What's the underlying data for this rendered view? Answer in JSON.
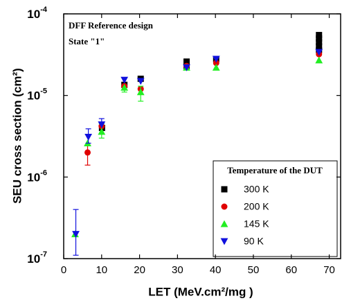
{
  "chart_data": {
    "type": "scatter",
    "xlabel": "LET (MeV.cm²/mg )",
    "ylabel": "SEU cross section (cm²)",
    "annotations": [
      "DFF Reference design",
      "State \"1\""
    ],
    "legend_title": "Temperature of the DUT",
    "legend": "lower right",
    "yscale": "log",
    "xlim": [
      0,
      73
    ],
    "xticks": [
      0,
      10,
      20,
      30,
      40,
      50,
      60,
      70
    ],
    "ylim": [
      1e-07,
      0.0001
    ],
    "yticks": [
      {
        "value": 1e-07,
        "label": "10",
        "exponent": "-7"
      },
      {
        "value": 1e-06,
        "label": "10",
        "exponent": "-6"
      },
      {
        "value": 1e-05,
        "label": "10",
        "exponent": "-5"
      },
      {
        "value": 0.0001,
        "label": "10",
        "exponent": "-4"
      }
    ],
    "series": [
      {
        "name": "300 K",
        "color": "#000000",
        "marker": "square",
        "x": [
          10.1,
          16,
          20.3,
          32.4,
          32.4,
          40.2,
          67.3,
          67.3,
          67.3,
          67.3,
          67.3
        ],
        "values": [
          4e-06,
          1.35e-05,
          1.6e-05,
          2.6e-05,
          2.3e-05,
          2.8e-05,
          5.5e-05,
          5e-05,
          4.5e-05,
          4e-05,
          3.6e-05
        ]
      },
      {
        "name": "200 K",
        "color": "#e00000",
        "marker": "circle",
        "x": [
          6.3,
          10,
          16,
          20.3,
          32.4,
          40.2,
          67.3
        ],
        "values": [
          2e-06,
          4.2e-06,
          1.3e-05,
          1.2e-05,
          2.3e-05,
          2.5e-05,
          3.2e-05
        ],
        "ylow": [
          1.4e-06,
          null,
          null,
          null,
          null,
          null,
          null
        ],
        "yhigh": [
          2.5e-06,
          null,
          null,
          null,
          null,
          null,
          null
        ]
      },
      {
        "name": "145 K",
        "color": "#22ee22",
        "marker": "triangle-up",
        "x": [
          3,
          6.3,
          10,
          16,
          20.3,
          32.4,
          40.2,
          67.3
        ],
        "values": [
          2e-07,
          2.6e-06,
          3.6e-06,
          1.25e-05,
          1.1e-05,
          2.2e-05,
          2.2e-05,
          2.7e-05
        ],
        "ylow": [
          null,
          null,
          3e-06,
          1.1e-05,
          8.5e-06,
          null,
          null,
          null
        ],
        "yhigh": [
          null,
          null,
          4.5e-06,
          null,
          1.3e-05,
          null,
          null,
          null
        ]
      },
      {
        "name": "90 K",
        "color": "#1010dd",
        "marker": "triangle-down",
        "x": [
          3.2,
          6.5,
          10,
          16,
          20.3,
          32.4,
          40.2,
          67.3
        ],
        "values": [
          2e-07,
          3.1e-06,
          4.4e-06,
          1.55e-05,
          1.5e-05,
          2.2e-05,
          2.8e-05,
          3.4e-05
        ],
        "ylow": [
          1.1e-07,
          2.6e-06,
          null,
          null,
          null,
          null,
          null,
          null
        ],
        "yhigh": [
          4e-07,
          3.9e-06,
          5.2e-06,
          null,
          null,
          null,
          null,
          null
        ]
      }
    ]
  }
}
